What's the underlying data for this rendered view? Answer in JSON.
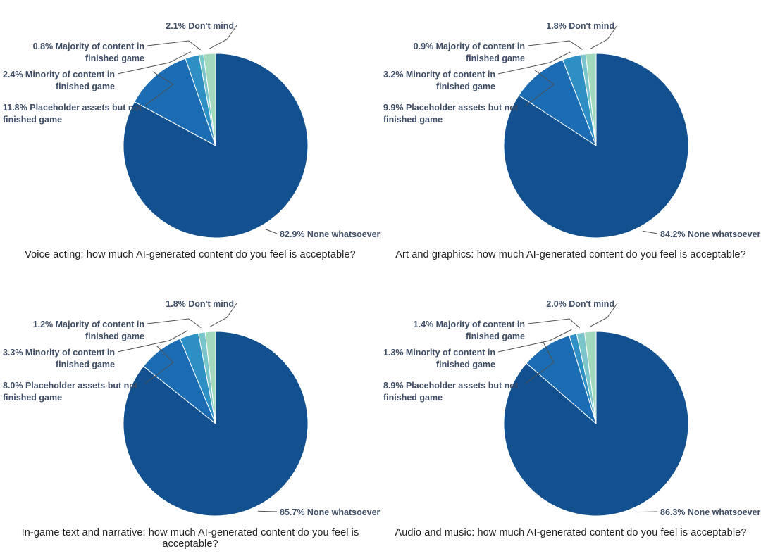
{
  "figure": {
    "background": "#ffffff"
  },
  "palette": {
    "none": "#12508f",
    "placeholder": "#1b6cb3",
    "minority": "#2e8fc5",
    "majority": "#79c5cc",
    "dont_mind": "#a3dabd",
    "leader_line": "#4f4f4f",
    "slice_label_text": "#3e4d65",
    "caption_text": "#1f1f1f"
  },
  "chart_data": [
    {
      "type": "pie",
      "title": "Voice acting: how much AI-generated content do you feel is acceptable?",
      "legend_position": "none",
      "order_clockwise_from_top": [
        "None whatsoever",
        "Placeholder assets but not finished game",
        "Minority of content in finished game",
        "Majority of content in finished game",
        "Don't mind"
      ],
      "slices": [
        {
          "key": "none",
          "label": "None whatsoever",
          "value": 82.9,
          "display_lines": [
            "82.9% None whatsoever"
          ]
        },
        {
          "key": "placeholder",
          "label": "Placeholder assets but not finished game",
          "value": 11.8,
          "display_lines": [
            "11.8% Placeholder assets but not",
            "finished game"
          ]
        },
        {
          "key": "minority",
          "label": "Minority of content in finished game",
          "value": 2.4,
          "display_lines": [
            "2.4% Minority of content in",
            "finished game"
          ]
        },
        {
          "key": "majority",
          "label": "Majority of content in finished game",
          "value": 0.8,
          "display_lines": [
            "0.8% Majority of content in",
            "finished game"
          ]
        },
        {
          "key": "dont_mind",
          "label": "Don't mind",
          "value": 2.1,
          "display_lines": [
            "2.1% Don't mind"
          ]
        }
      ]
    },
    {
      "type": "pie",
      "title": "Art and graphics: how much AI-generated content do you feel is acceptable?",
      "legend_position": "none",
      "order_clockwise_from_top": [
        "None whatsoever",
        "Placeholder assets but not finished game",
        "Minority of content in finished game",
        "Majority of content in finished game",
        "Don't mind"
      ],
      "slices": [
        {
          "key": "none",
          "label": "None whatsoever",
          "value": 84.2,
          "display_lines": [
            "84.2% None whatsoever"
          ]
        },
        {
          "key": "placeholder",
          "label": "Placeholder assets but not finished game",
          "value": 9.9,
          "display_lines": [
            "9.9% Placeholder assets but not",
            "finished game"
          ]
        },
        {
          "key": "minority",
          "label": "Minority of content in finished game",
          "value": 3.2,
          "display_lines": [
            "3.2% Minority of content in",
            "finished game"
          ]
        },
        {
          "key": "majority",
          "label": "Majority of content in finished game",
          "value": 0.9,
          "display_lines": [
            "0.9% Majority of content in",
            "finished game"
          ]
        },
        {
          "key": "dont_mind",
          "label": "Don't mind",
          "value": 1.8,
          "display_lines": [
            "1.8% Don't mind"
          ]
        }
      ]
    },
    {
      "type": "pie",
      "title": "In-game text and narrative: how much AI-generated content do you feel is acceptable?",
      "legend_position": "none",
      "order_clockwise_from_top": [
        "None whatsoever",
        "Placeholder assets but not finished game",
        "Minority of content in finished game",
        "Majority of content in finished game",
        "Don't mind"
      ],
      "slices": [
        {
          "key": "none",
          "label": "None whatsoever",
          "value": 85.7,
          "display_lines": [
            "85.7% None whatsoever"
          ]
        },
        {
          "key": "placeholder",
          "label": "Placeholder assets but not finished game",
          "value": 8.0,
          "display_lines": [
            "8.0% Placeholder assets but not",
            "finished game"
          ]
        },
        {
          "key": "minority",
          "label": "Minority of content in finished game",
          "value": 3.3,
          "display_lines": [
            "3.3% Minority of content in",
            "finished game"
          ]
        },
        {
          "key": "majority",
          "label": "Majority of content in finished game",
          "value": 1.2,
          "display_lines": [
            "1.2% Majority of content in",
            "finished game"
          ]
        },
        {
          "key": "dont_mind",
          "label": "Don't mind",
          "value": 1.8,
          "display_lines": [
            "1.8% Don't mind"
          ]
        }
      ]
    },
    {
      "type": "pie",
      "title": "Audio and music: how much AI-generated content do you feel is acceptable?",
      "legend_position": "none",
      "order_clockwise_from_top": [
        "None whatsoever",
        "Placeholder assets but not finished game",
        "Minority of content in finished game",
        "Majority of content in finished game",
        "Don't mind"
      ],
      "slices": [
        {
          "key": "none",
          "label": "None whatsoever",
          "value": 86.3,
          "display_lines": [
            "86.3% None whatsoever"
          ]
        },
        {
          "key": "placeholder",
          "label": "Placeholder assets but not finished game",
          "value": 8.9,
          "display_lines": [
            "8.9% Placeholder assets but not",
            "finished game"
          ]
        },
        {
          "key": "minority",
          "label": "Minority of content in finished game",
          "value": 1.3,
          "display_lines": [
            "1.3% Minority of content in",
            "finished game"
          ]
        },
        {
          "key": "majority",
          "label": "Majority of content in finished game",
          "value": 1.4,
          "display_lines": [
            "1.4% Majority of content in",
            "finished game"
          ]
        },
        {
          "key": "dont_mind",
          "label": "Don't mind",
          "value": 2.0,
          "display_lines": [
            "2.0% Don't mind"
          ]
        }
      ]
    }
  ]
}
